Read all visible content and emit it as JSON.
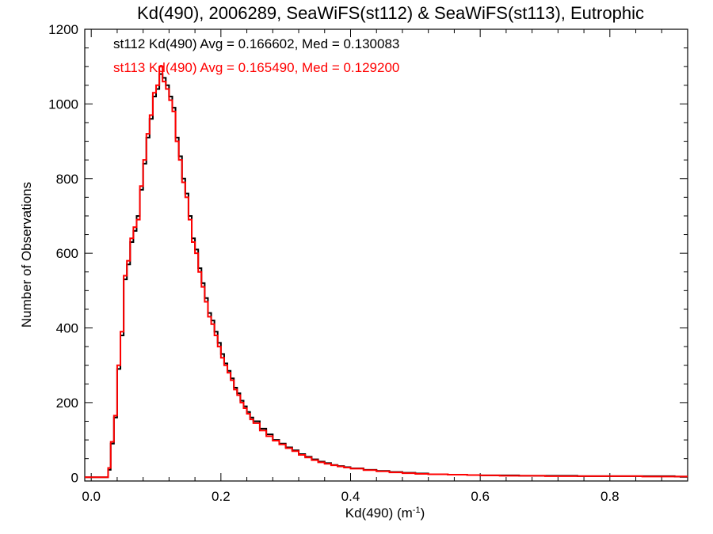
{
  "chart_data": {
    "type": "line",
    "title": "Kd(490), 2006289, SeaWiFS(st112) & SeaWiFS(st113), Eutrophic",
    "xlabel": "Kd(490) (m",
    "xlabel_sup": "-1",
    "xlabel_end": ")",
    "ylabel": "Number of Observations",
    "xlim": [
      -0.01,
      0.92
    ],
    "ylim": [
      -10,
      1200
    ],
    "xticks": [
      0.0,
      0.2,
      0.4,
      0.6,
      0.8
    ],
    "xtick_labels": [
      "0.0",
      "0.2",
      "0.4",
      "0.6",
      "0.8"
    ],
    "yticks": [
      0,
      200,
      400,
      600,
      800,
      1000,
      1200
    ],
    "ytick_labels": [
      "0",
      "200",
      "400",
      "600",
      "800",
      "1000",
      "1200"
    ],
    "step": "histogram",
    "series": [
      {
        "name": "st112",
        "color": "#000000",
        "legend": "st112 Kd(490) Avg = 0.166602, Med = 0.130083",
        "x": [
          -0.01,
          0.01,
          0.02,
          0.026,
          0.03,
          0.035,
          0.04,
          0.045,
          0.05,
          0.055,
          0.06,
          0.065,
          0.07,
          0.075,
          0.08,
          0.085,
          0.09,
          0.095,
          0.1,
          0.105,
          0.11,
          0.115,
          0.12,
          0.125,
          0.13,
          0.135,
          0.14,
          0.145,
          0.15,
          0.155,
          0.16,
          0.165,
          0.17,
          0.175,
          0.18,
          0.185,
          0.19,
          0.195,
          0.2,
          0.205,
          0.21,
          0.215,
          0.22,
          0.225,
          0.23,
          0.235,
          0.24,
          0.245,
          0.25,
          0.26,
          0.27,
          0.28,
          0.29,
          0.3,
          0.31,
          0.32,
          0.33,
          0.34,
          0.35,
          0.36,
          0.37,
          0.38,
          0.39,
          0.4,
          0.42,
          0.44,
          0.46,
          0.48,
          0.5,
          0.52,
          0.55,
          0.58,
          0.6,
          0.63,
          0.66,
          0.7,
          0.75,
          0.8,
          0.85,
          0.9,
          0.92
        ],
        "y": [
          0,
          0,
          0,
          20,
          90,
          160,
          290,
          380,
          530,
          570,
          630,
          660,
          700,
          770,
          840,
          910,
          960,
          1020,
          1040,
          1080,
          1070,
          1050,
          1020,
          990,
          910,
          860,
          800,
          760,
          700,
          640,
          610,
          560,
          520,
          480,
          440,
          420,
          390,
          360,
          330,
          305,
          285,
          265,
          240,
          225,
          205,
          190,
          175,
          160,
          150,
          130,
          115,
          100,
          90,
          80,
          72,
          62,
          55,
          48,
          42,
          38,
          33,
          30,
          27,
          24,
          20,
          17,
          14,
          12,
          10,
          8,
          7,
          6,
          5,
          5,
          4,
          4,
          3,
          3,
          3,
          2,
          2
        ]
      },
      {
        "name": "st113",
        "color": "#ff0000",
        "legend": "st113 Kd(490) Avg = 0.165490, Med = 0.129200",
        "x": [
          -0.01,
          0.01,
          0.02,
          0.026,
          0.03,
          0.035,
          0.04,
          0.045,
          0.05,
          0.055,
          0.06,
          0.065,
          0.07,
          0.075,
          0.08,
          0.085,
          0.09,
          0.095,
          0.1,
          0.105,
          0.11,
          0.115,
          0.12,
          0.125,
          0.13,
          0.135,
          0.14,
          0.145,
          0.15,
          0.155,
          0.16,
          0.165,
          0.17,
          0.175,
          0.18,
          0.185,
          0.19,
          0.195,
          0.2,
          0.205,
          0.21,
          0.215,
          0.22,
          0.225,
          0.23,
          0.235,
          0.24,
          0.245,
          0.25,
          0.26,
          0.27,
          0.28,
          0.29,
          0.3,
          0.31,
          0.32,
          0.33,
          0.34,
          0.35,
          0.36,
          0.37,
          0.38,
          0.39,
          0.4,
          0.42,
          0.44,
          0.46,
          0.48,
          0.5,
          0.52,
          0.55,
          0.58,
          0.6,
          0.63,
          0.66,
          0.7,
          0.75,
          0.8,
          0.85,
          0.9,
          0.92
        ],
        "y": [
          0,
          0,
          0,
          25,
          95,
          165,
          300,
          390,
          540,
          580,
          640,
          670,
          690,
          780,
          850,
          920,
          970,
          1030,
          1050,
          1100,
          1060,
          1040,
          1010,
          980,
          900,
          850,
          790,
          750,
          690,
          630,
          600,
          550,
          510,
          470,
          430,
          410,
          380,
          350,
          320,
          300,
          280,
          260,
          235,
          220,
          200,
          185,
          170,
          155,
          145,
          125,
          110,
          98,
          88,
          78,
          70,
          60,
          53,
          46,
          40,
          36,
          32,
          29,
          26,
          23,
          19,
          16,
          13,
          11,
          9,
          8,
          7,
          6,
          5,
          4,
          4,
          3,
          3,
          3,
          2,
          2,
          2
        ]
      }
    ]
  }
}
